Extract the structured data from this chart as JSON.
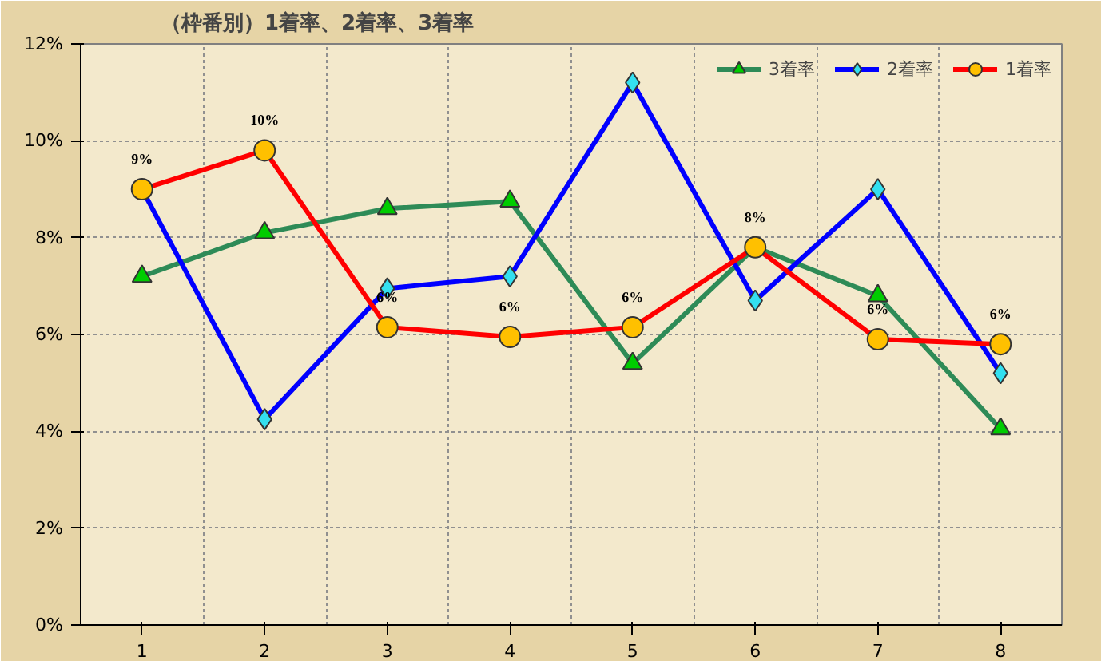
{
  "chart_data": {
    "type": "line",
    "title": "（枠番別）1着率、2着率、3着率",
    "categories": [
      "1",
      "2",
      "3",
      "4",
      "5",
      "6",
      "7",
      "8"
    ],
    "series": [
      {
        "name": "3着率",
        "color": "#2e8b57",
        "marker": "triangle",
        "colors": [
          "#00cc00",
          "#00cc00",
          "#00cc00",
          "#00cc00",
          "#00cc00",
          "#00cc00",
          "#00cc00",
          "#00cc00"
        ],
        "values": [
          7.2,
          8.1,
          8.6,
          8.75,
          5.4,
          7.8,
          6.8,
          4.05
        ]
      },
      {
        "name": "2着率",
        "color": "#0000ff",
        "marker": "diamond",
        "colors": [
          "#33e0f0",
          "#33e0f0",
          "#33e0f0",
          "#33e0f0",
          "#33e0f0",
          "#33e0f0",
          "#33e0f0",
          "#33e0f0"
        ],
        "values": [
          9.0,
          4.25,
          6.95,
          7.2,
          11.2,
          6.7,
          9.0,
          5.2
        ]
      },
      {
        "name": "1着率",
        "color": "#ff0000",
        "marker": "circle",
        "colors": [
          "#ffc000",
          "#ffc000",
          "#ffc000",
          "#ffc000",
          "#ffc000",
          "#ffc000",
          "#ffc000",
          "#ffc000"
        ],
        "values": [
          9.0,
          9.8,
          6.15,
          5.95,
          6.15,
          7.8,
          5.9,
          5.8
        ],
        "value_labels": [
          "9%",
          "10%",
          "6%",
          "6%",
          "6%",
          "8%",
          "6%",
          "6%"
        ]
      }
    ],
    "ylim": [
      0,
      12
    ],
    "yticks": [
      {
        "value": 0,
        "label": "0%"
      },
      {
        "value": 2,
        "label": "2%"
      },
      {
        "value": 4,
        "label": "4%"
      },
      {
        "value": 6,
        "label": "6%"
      },
      {
        "value": 8,
        "label": "8%"
      },
      {
        "value": 10,
        "label": "10%"
      },
      {
        "value": 12,
        "label": "12%"
      }
    ],
    "grid": true,
    "legend": "top right",
    "line_style": "solid"
  }
}
